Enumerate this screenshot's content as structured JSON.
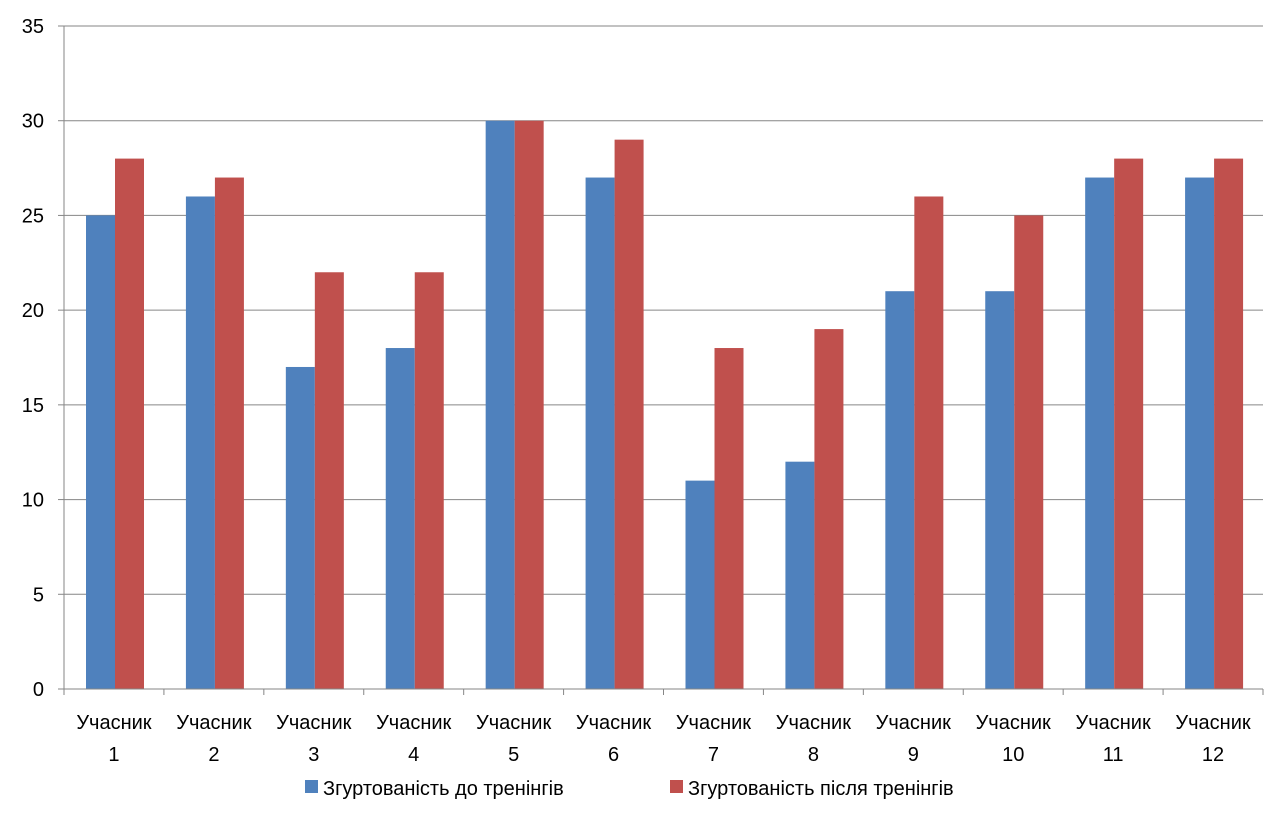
{
  "chart_data": {
    "type": "bar",
    "title": "",
    "xlabel": "",
    "ylabel": "",
    "ylim": [
      0,
      35
    ],
    "yticks": [
      0,
      5,
      10,
      15,
      20,
      25,
      30,
      35
    ],
    "grid": true,
    "legend_position": "bottom",
    "categories": [
      [
        "Учасник",
        "1"
      ],
      [
        "Учасник",
        "2"
      ],
      [
        "Учасник",
        "3"
      ],
      [
        "Учасник",
        "4"
      ],
      [
        "Учасник",
        "5"
      ],
      [
        "Учасник",
        "6"
      ],
      [
        "Учасник",
        "7"
      ],
      [
        "Учасник",
        "8"
      ],
      [
        "Учасник",
        "9"
      ],
      [
        "Учасник",
        "10"
      ],
      [
        "Учасник",
        "11"
      ],
      [
        "Учасник",
        "12"
      ]
    ],
    "series": [
      {
        "name": "Згуртованість до тренінгів",
        "color": "#4F81BD",
        "values": [
          25,
          26,
          17,
          18,
          30,
          27,
          11,
          12,
          21,
          21,
          27,
          27
        ]
      },
      {
        "name": "Згуртованість після тренінгів",
        "color": "#C0504D",
        "values": [
          28,
          27,
          22,
          22,
          30,
          29,
          18,
          19,
          26,
          25,
          28,
          28
        ]
      }
    ]
  }
}
